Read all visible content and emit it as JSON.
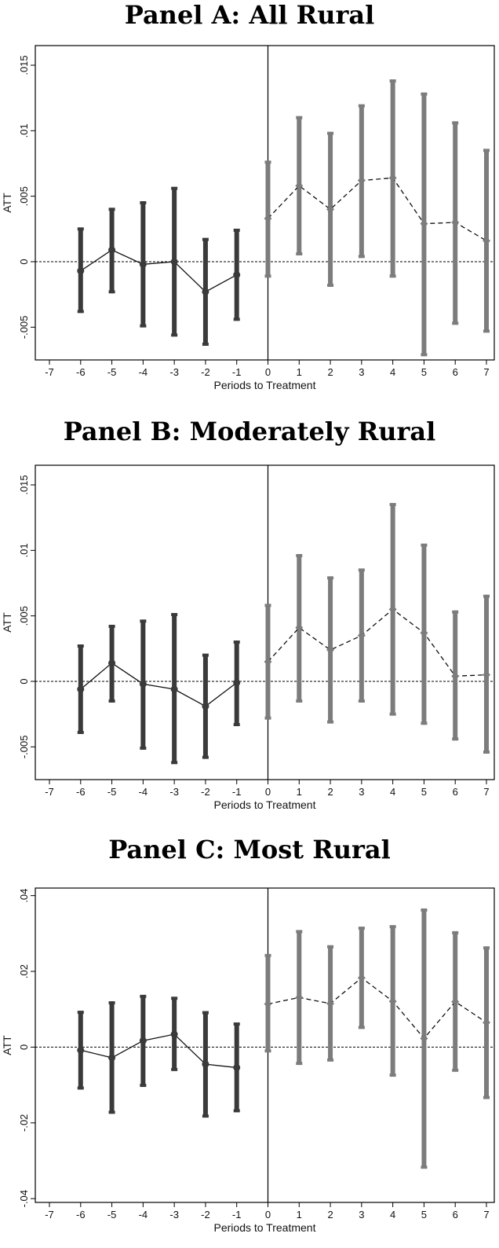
{
  "chart_data": [
    {
      "type": "line",
      "title": "Panel A: All Rural",
      "xlabel": "Periods to Treatment",
      "ylabel": "ATT",
      "xlim": [
        -7,
        7
      ],
      "ylim": [
        -0.0075,
        0.0165
      ],
      "x_ticks": [
        -7,
        -6,
        -5,
        -4,
        -3,
        -2,
        -1,
        0,
        1,
        2,
        3,
        4,
        5,
        6,
        7
      ],
      "y_ticks": [
        -0.005,
        0,
        0.005,
        0.01,
        0.015
      ],
      "y_tick_labels": [
        "-.005",
        "0",
        ".005",
        ".01",
        ".015"
      ],
      "reference_hline": 0,
      "reference_vline": 0,
      "grid": false,
      "series": [
        {
          "period": "pre",
          "color": "#3a3a3a",
          "line_style": "solid",
          "marker": "circle",
          "x": [
            -6,
            -5,
            -4,
            -3,
            -2,
            -1
          ],
          "y": [
            -0.0007,
            0.0009,
            -0.0002,
            0.0,
            -0.0023,
            -0.001
          ],
          "ci_low": [
            -0.0038,
            -0.0023,
            -0.0049,
            -0.0056,
            -0.0063,
            -0.0044
          ],
          "ci_high": [
            0.0025,
            0.004,
            0.0045,
            0.0056,
            0.0017,
            0.0024
          ]
        },
        {
          "period": "post",
          "color": "#7c7c7c",
          "line_style": "dashed",
          "marker": "diamond",
          "x": [
            0,
            1,
            2,
            3,
            4,
            5,
            6,
            7
          ],
          "y": [
            0.0033,
            0.0058,
            0.004,
            0.0062,
            0.0064,
            0.0029,
            0.003,
            0.0016
          ],
          "ci_low": [
            -0.0011,
            0.0006,
            -0.0018,
            0.0004,
            -0.0011,
            -0.0071,
            -0.0047,
            -0.0053
          ],
          "ci_high": [
            0.0076,
            0.011,
            0.0098,
            0.0119,
            0.0138,
            0.0128,
            0.0106,
            0.0085
          ]
        }
      ]
    },
    {
      "type": "line",
      "title": "Panel B: Moderately Rural",
      "xlabel": "Periods to Treatment",
      "ylabel": "ATT",
      "xlim": [
        -7,
        7
      ],
      "ylim": [
        -0.0075,
        0.0165
      ],
      "x_ticks": [
        -7,
        -6,
        -5,
        -4,
        -3,
        -2,
        -1,
        0,
        1,
        2,
        3,
        4,
        5,
        6,
        7
      ],
      "y_ticks": [
        -0.005,
        0,
        0.005,
        0.01,
        0.015
      ],
      "y_tick_labels": [
        "-.005",
        "0",
        ".005",
        ".01",
        ".015"
      ],
      "reference_hline": 0,
      "reference_vline": 0,
      "grid": false,
      "series": [
        {
          "period": "pre",
          "color": "#3a3a3a",
          "line_style": "solid",
          "marker": "circle",
          "x": [
            -6,
            -5,
            -4,
            -3,
            -2,
            -1
          ],
          "y": [
            -0.0006,
            0.0014,
            -0.0002,
            -0.0006,
            -0.0019,
            -0.0001
          ],
          "ci_low": [
            -0.0039,
            -0.0015,
            -0.0051,
            -0.0062,
            -0.0058,
            -0.0033
          ],
          "ci_high": [
            0.0027,
            0.0042,
            0.0046,
            0.0051,
            0.002,
            0.003
          ]
        },
        {
          "period": "post",
          "color": "#7c7c7c",
          "line_style": "dashed",
          "marker": "diamond",
          "x": [
            0,
            1,
            2,
            3,
            4,
            5,
            6,
            7
          ],
          "y": [
            0.0015,
            0.0041,
            0.0024,
            0.0035,
            0.0055,
            0.0037,
            0.0004,
            0.0005
          ],
          "ci_low": [
            -0.0028,
            -0.0015,
            -0.0031,
            -0.0015,
            -0.0025,
            -0.0032,
            -0.0044,
            -0.0054
          ],
          "ci_high": [
            0.0058,
            0.0096,
            0.0079,
            0.0085,
            0.0135,
            0.0104,
            0.0053,
            0.0065
          ]
        }
      ]
    },
    {
      "type": "line",
      "title": "Panel C: Most Rural",
      "xlabel": "Periods to Treatment",
      "ylabel": "ATT",
      "xlim": [
        -7,
        7
      ],
      "ylim": [
        -0.041,
        0.042
      ],
      "x_ticks": [
        -7,
        -6,
        -5,
        -4,
        -3,
        -2,
        -1,
        0,
        1,
        2,
        3,
        4,
        5,
        6,
        7
      ],
      "y_ticks": [
        -0.04,
        -0.02,
        0,
        0.02,
        0.04
      ],
      "y_tick_labels": [
        "-.04",
        "-.02",
        "0",
        ".02",
        ".04"
      ],
      "reference_hline": 0,
      "reference_vline": 0,
      "grid": false,
      "series": [
        {
          "period": "pre",
          "color": "#3a3a3a",
          "line_style": "solid",
          "marker": "circle",
          "x": [
            -6,
            -5,
            -4,
            -3,
            -2,
            -1
          ],
          "y": [
            -0.0008,
            -0.0028,
            0.0017,
            0.0034,
            -0.0045,
            -0.0054
          ],
          "ci_low": [
            -0.0108,
            -0.0172,
            -0.0101,
            -0.0059,
            -0.0182,
            -0.0168
          ],
          "ci_high": [
            0.0092,
            0.0117,
            0.0134,
            0.0129,
            0.0091,
            0.0061
          ]
        },
        {
          "period": "post",
          "color": "#7c7c7c",
          "line_style": "dashed",
          "marker": "diamond",
          "x": [
            0,
            1,
            2,
            3,
            4,
            5,
            6,
            7
          ],
          "y": [
            0.0114,
            0.0131,
            0.0115,
            0.0183,
            0.0121,
            0.0023,
            0.012,
            0.0065
          ],
          "ci_low": [
            -0.001,
            -0.0043,
            -0.0034,
            0.0052,
            -0.0074,
            -0.0317,
            -0.0061,
            -0.0133
          ],
          "ci_high": [
            0.0242,
            0.0305,
            0.0265,
            0.0314,
            0.0318,
            0.0362,
            0.0302,
            0.0262
          ]
        }
      ]
    }
  ]
}
